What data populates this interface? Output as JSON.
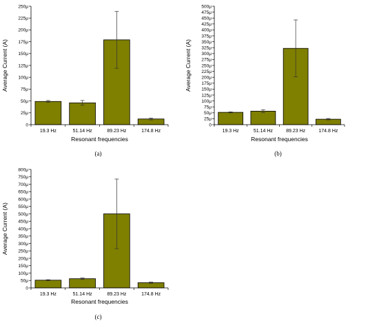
{
  "chart_data": [
    {
      "type": "bar",
      "panel_label": "(a)",
      "categories": [
        "19.3 Hz",
        "51.14 Hz",
        "89.23 Hz",
        "174.8 Hz"
      ],
      "values": [
        49,
        46,
        179,
        12
      ],
      "errors": [
        2,
        5,
        60,
        2
      ],
      "unit_suffix": "μ",
      "xlabel": "Resonant frequencies",
      "ylabel": "Average Current (A)",
      "ylim": [
        0,
        250
      ],
      "ytick_step": 25,
      "bar_color": "#7f7f00",
      "grid": false
    },
    {
      "type": "bar",
      "panel_label": "(b)",
      "categories": [
        "19.3 Hz",
        "51.14 Hz",
        "89.23 Hz",
        "174.8 Hz"
      ],
      "values": [
        52,
        57,
        322,
        23
      ],
      "errors": [
        2,
        6,
        120,
        3
      ],
      "unit_suffix": "μ",
      "xlabel": "Resonant frequencies",
      "ylabel": "Average Current (A)",
      "ylim": [
        0,
        500
      ],
      "ytick_step": 25,
      "bar_color": "#7f7f00",
      "grid": false
    },
    {
      "type": "bar",
      "panel_label": "(c)",
      "categories": [
        "19.3 Hz",
        "51.14 Hz",
        "89.23 Hz",
        "174.8 Hz"
      ],
      "values": [
        52,
        62,
        500,
        35
      ],
      "errors": [
        3,
        5,
        235,
        4
      ],
      "unit_suffix": "μ",
      "xlabel": "Resonant frequencies",
      "ylabel": "Average Current (A)",
      "ylim": [
        0,
        800
      ],
      "ytick_step": 50,
      "bar_color": "#7f7f00",
      "grid": false
    }
  ]
}
